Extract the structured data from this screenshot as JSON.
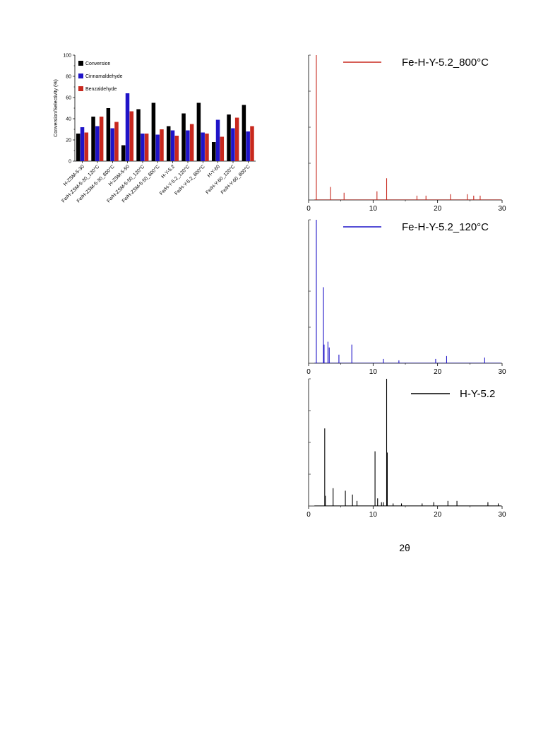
{
  "chart_data": [
    {
      "type": "bar",
      "ylabel": "Conversion/Selectivity (%)",
      "ylim": [
        0,
        100
      ],
      "yticks": [
        "0",
        "20",
        "40",
        "60",
        "80",
        "100"
      ],
      "legend_position": "top-left",
      "categories": [
        "H-ZSM-5-30",
        "Fe/H-ZSM-5-30_120°C",
        "Fe/H-ZSM-5-30_800°C",
        "H-ZSM-5-50",
        "Fe/H-ZSM-5-50_120°C",
        "Fe/H-ZSM-5-50_800°C",
        "H-Y-5.2",
        "Fe/H-Y-5.2_120°C",
        "Fe/H-Y-5.2_800°C",
        "H-Y-60",
        "Fe/H-Y-60_120°C",
        "Fe/H-Y-60_800°C"
      ],
      "series": [
        {
          "name": "Conversion",
          "color": "#000000",
          "values": [
            26,
            42,
            50,
            15,
            49,
            55,
            33,
            45,
            55,
            18,
            44,
            53
          ]
        },
        {
          "name": "Cinnamaldehyde",
          "color": "#1f14c8",
          "values": [
            32,
            33,
            31,
            64,
            26,
            25,
            29,
            29,
            27,
            39,
            31,
            28
          ]
        },
        {
          "name": "Benzaldehyde",
          "color": "#c8281e",
          "values": [
            27,
            42,
            37,
            47,
            26,
            30,
            24,
            35,
            26,
            23,
            41,
            33
          ]
        }
      ]
    },
    {
      "type": "line",
      "legend": "Fe-H-Y-5.2_800°C",
      "color": "#c8281e",
      "xlim": [
        0,
        30
      ],
      "xticks": [
        "0",
        "10",
        "20",
        "30"
      ],
      "ylim": [
        0,
        100
      ],
      "peaks": [
        [
          1.2,
          100
        ],
        [
          3.4,
          9
        ],
        [
          5.5,
          5
        ],
        [
          10.6,
          6
        ],
        [
          12.1,
          15
        ],
        [
          16.8,
          3
        ],
        [
          18.2,
          3
        ],
        [
          22.0,
          4
        ],
        [
          24.6,
          4
        ],
        [
          25.6,
          3
        ],
        [
          26.6,
          3
        ]
      ]
    },
    {
      "type": "line",
      "legend": "Fe-H-Y-5.2_120°C",
      "color": "#1f14c8",
      "xlim": [
        0,
        30
      ],
      "xticks": [
        "0",
        "10",
        "20",
        "30"
      ],
      "ylim": [
        0,
        100
      ],
      "peaks": [
        [
          1.2,
          100
        ],
        [
          2.3,
          53
        ],
        [
          2.4,
          13
        ],
        [
          3.0,
          15
        ],
        [
          3.2,
          11
        ],
        [
          4.7,
          6
        ],
        [
          6.7,
          13
        ],
        [
          11.6,
          3
        ],
        [
          14.0,
          2
        ],
        [
          19.7,
          3
        ],
        [
          21.4,
          5
        ],
        [
          27.3,
          4
        ]
      ]
    },
    {
      "type": "line",
      "legend": "H-Y-5.2",
      "color": "#000000",
      "xlabel": "2θ",
      "xlim": [
        0,
        30
      ],
      "xticks": [
        "0",
        "10",
        "20",
        "30"
      ],
      "ylim": [
        0,
        100
      ],
      "peaks": [
        [
          2.5,
          61
        ],
        [
          2.6,
          8
        ],
        [
          3.8,
          14
        ],
        [
          5.7,
          12
        ],
        [
          6.8,
          9
        ],
        [
          7.5,
          4
        ],
        [
          10.3,
          43
        ],
        [
          10.7,
          6
        ],
        [
          11.3,
          3
        ],
        [
          11.6,
          3
        ],
        [
          12.1,
          100
        ],
        [
          12.2,
          42
        ],
        [
          13.1,
          2
        ],
        [
          14.4,
          2
        ],
        [
          17.6,
          2
        ],
        [
          19.4,
          3
        ],
        [
          21.6,
          4
        ],
        [
          23.0,
          4
        ],
        [
          27.8,
          3
        ],
        [
          29.4,
          2
        ]
      ]
    }
  ]
}
